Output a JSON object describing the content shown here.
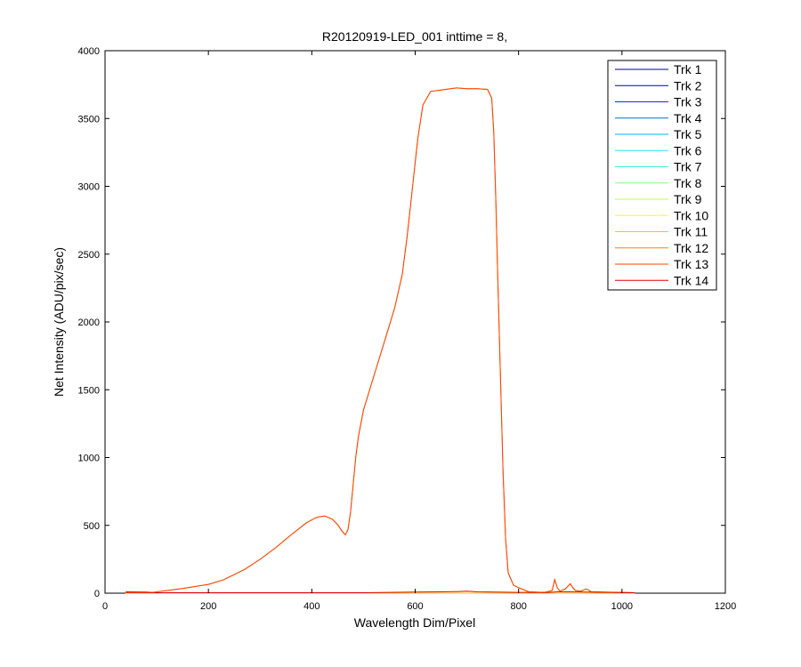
{
  "chart_data": {
    "type": "line",
    "title": "R20120919-LED_001 inttime = 8,",
    "xlabel": "Wavelength Dim/Pixel",
    "ylabel": "Net Intensity (ADU/pix/sec)",
    "xlim": [
      0,
      1200
    ],
    "ylim": [
      0,
      4000
    ],
    "xticks": [
      0,
      200,
      400,
      600,
      800,
      1000,
      1200
    ],
    "yticks": [
      0,
      500,
      1000,
      1500,
      2000,
      2500,
      3000,
      3500,
      4000
    ],
    "grid": false,
    "legend": "top-right",
    "series": [
      {
        "name": "Trk 1",
        "color": "#00008f",
        "x": [
          40,
          1025
        ],
        "y": [
          0,
          0
        ]
      },
      {
        "name": "Trk 2",
        "color": "#0000c8",
        "x": [
          40,
          1025
        ],
        "y": [
          0,
          0
        ]
      },
      {
        "name": "Trk 3",
        "color": "#0030ff",
        "x": [
          40,
          1025
        ],
        "y": [
          0,
          0
        ]
      },
      {
        "name": "Trk 4",
        "color": "#0070c0",
        "x": [
          40,
          1025
        ],
        "y": [
          0,
          0
        ]
      },
      {
        "name": "Trk 5",
        "color": "#00b0ff",
        "x": [
          40,
          1025
        ],
        "y": [
          0,
          0
        ]
      },
      {
        "name": "Trk 6",
        "color": "#30e0ff",
        "x": [
          40,
          1025
        ],
        "y": [
          0,
          0
        ]
      },
      {
        "name": "Trk 7",
        "color": "#40f0e0",
        "x": [
          40,
          1025
        ],
        "y": [
          0,
          0
        ]
      },
      {
        "name": "Trk 8",
        "color": "#80ff80",
        "x": [
          40,
          1025
        ],
        "y": [
          0,
          0
        ]
      },
      {
        "name": "Trk 9",
        "color": "#c0ff40",
        "x": [
          40,
          1025
        ],
        "y": [
          0,
          0
        ]
      },
      {
        "name": "Trk 10",
        "color": "#ffff00",
        "x": [
          40,
          1025
        ],
        "y": [
          0,
          0
        ]
      },
      {
        "name": "Trk 11",
        "color": "#ffc000",
        "x": [
          40,
          1025
        ],
        "y": [
          0,
          0
        ]
      },
      {
        "name": "Trk 12",
        "color": "#ff8000",
        "x": [
          40,
          60,
          90,
          100,
          150,
          200,
          230,
          270,
          300,
          330,
          360,
          390,
          410,
          425,
          440,
          450,
          460,
          465,
          470,
          475,
          480,
          485,
          490,
          495,
          500,
          520,
          540,
          560,
          575,
          585,
          595,
          605,
          615,
          630,
          650,
          680,
          700,
          720,
          740,
          748,
          752,
          756,
          760,
          765,
          770,
          775,
          780,
          790,
          800,
          820,
          850,
          865,
          870,
          875,
          880,
          890,
          900,
          905,
          910,
          920,
          930,
          935,
          940,
          960,
          1000,
          1025
        ],
        "y": [
          3,
          5,
          3,
          10,
          35,
          65,
          100,
          175,
          250,
          335,
          430,
          520,
          560,
          570,
          545,
          505,
          450,
          430,
          470,
          600,
          800,
          1000,
          1150,
          1250,
          1350,
          1600,
          1850,
          2100,
          2350,
          2650,
          3000,
          3350,
          3600,
          3700,
          3710,
          3725,
          3720,
          3720,
          3715,
          3650,
          3400,
          2900,
          2300,
          1600,
          900,
          400,
          150,
          60,
          40,
          10,
          5,
          20,
          100,
          40,
          15,
          30,
          70,
          40,
          20,
          15,
          30,
          25,
          10,
          8,
          5,
          3
        ]
      },
      {
        "name": "Trk 13",
        "color": "#ff4000",
        "x": [
          40,
          60,
          90,
          100,
          150,
          200,
          230,
          270,
          300,
          330,
          360,
          390,
          410,
          425,
          440,
          450,
          460,
          465,
          470,
          475,
          480,
          485,
          490,
          495,
          500,
          520,
          540,
          560,
          575,
          585,
          595,
          605,
          615,
          630,
          650,
          680,
          700,
          720,
          740,
          748,
          752,
          756,
          760,
          765,
          770,
          775,
          780,
          790,
          800,
          820,
          850,
          865,
          870,
          875,
          880,
          890,
          900,
          905,
          910,
          920,
          930,
          935,
          940,
          960,
          1000,
          1025
        ],
        "y": [
          3,
          5,
          3,
          10,
          35,
          65,
          100,
          175,
          250,
          335,
          430,
          520,
          560,
          570,
          545,
          505,
          450,
          430,
          470,
          600,
          800,
          1000,
          1150,
          1250,
          1350,
          1600,
          1850,
          2100,
          2350,
          2650,
          3000,
          3350,
          3600,
          3700,
          3710,
          3725,
          3720,
          3720,
          3715,
          3650,
          3400,
          2900,
          2300,
          1600,
          900,
          400,
          150,
          60,
          40,
          10,
          5,
          20,
          100,
          40,
          15,
          30,
          70,
          40,
          20,
          15,
          30,
          25,
          10,
          8,
          5,
          3
        ]
      },
      {
        "name": "Trk 14",
        "color": "#e00000",
        "x": [
          40,
          80,
          100,
          300,
          500,
          600,
          650,
          680,
          700,
          720,
          800,
          860,
          875,
          900,
          935,
          1000,
          1025
        ],
        "y": [
          10,
          8,
          3,
          3,
          3,
          8,
          10,
          12,
          15,
          10,
          6,
          6,
          10,
          10,
          8,
          5,
          3
        ]
      }
    ]
  }
}
